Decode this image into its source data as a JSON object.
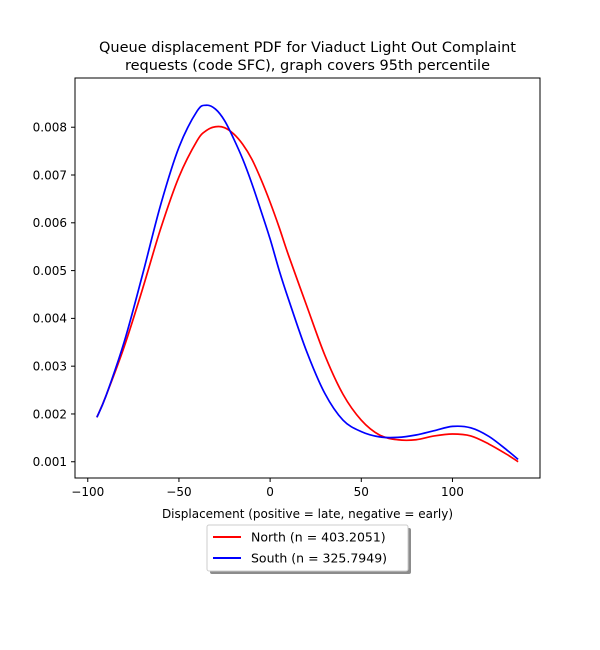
{
  "chart_data": {
    "type": "line",
    "title_lines": [
      "Queue displacement PDF for Viaduct Light Out Complaint",
      "requests (code SFC), graph covers 95th percentile"
    ],
    "xlabel": "Displacement (positive = late, negative = early)",
    "ylabel": "",
    "xlim": [
      -107,
      148
    ],
    "ylim": [
      0.00066,
      0.00903
    ],
    "xticks": [
      -100,
      -50,
      0,
      50,
      100
    ],
    "xtick_labels": [
      "−100",
      "−50",
      "0",
      "50",
      "100"
    ],
    "yticks": [
      0.001,
      0.002,
      0.003,
      0.004,
      0.005,
      0.006,
      0.007,
      0.008
    ],
    "ytick_labels": [
      "0.001",
      "0.002",
      "0.003",
      "0.004",
      "0.005",
      "0.006",
      "0.007",
      "0.008"
    ],
    "grid": false,
    "legend_placement": "below plot, centered",
    "series": [
      {
        "name": "North (n = 403.2051)",
        "color": "#ff0000",
        "x": [
          -95,
          -90,
          -80,
          -70,
          -60,
          -50,
          -40,
          -35,
          -30,
          -25,
          -20,
          -15,
          -10,
          -5,
          0,
          5,
          10,
          20,
          30,
          40,
          50,
          60,
          70,
          80,
          90,
          100,
          110,
          120,
          130,
          136
        ],
        "y": [
          0.00193,
          0.00238,
          0.00341,
          0.00461,
          0.00588,
          0.00696,
          0.00772,
          0.00793,
          0.00801,
          0.00799,
          0.00786,
          0.00764,
          0.00733,
          0.00691,
          0.00643,
          0.0059,
          0.00533,
          0.00427,
          0.00323,
          0.00241,
          0.00187,
          0.00156,
          0.00146,
          0.00146,
          0.00154,
          0.00158,
          0.00154,
          0.00137,
          0.00115,
          0.001
        ]
      },
      {
        "name": "South (n = 325.7949)",
        "color": "#0000ff",
        "x": [
          -95,
          -90,
          -80,
          -70,
          -60,
          -50,
          -40,
          -35,
          -30,
          -25,
          -20,
          -15,
          -10,
          -5,
          0,
          5,
          10,
          20,
          30,
          40,
          50,
          60,
          70,
          80,
          90,
          100,
          110,
          120,
          130,
          136
        ],
        "y": [
          0.00193,
          0.00238,
          0.00351,
          0.00491,
          0.00638,
          0.00758,
          0.00834,
          0.00846,
          0.00838,
          0.00814,
          0.00776,
          0.00733,
          0.00682,
          0.00625,
          0.00566,
          0.005,
          0.00441,
          0.00331,
          0.00243,
          0.00187,
          0.00163,
          0.00152,
          0.00151,
          0.00156,
          0.00165,
          0.00174,
          0.00171,
          0.00153,
          0.00124,
          0.00105
        ]
      }
    ]
  }
}
